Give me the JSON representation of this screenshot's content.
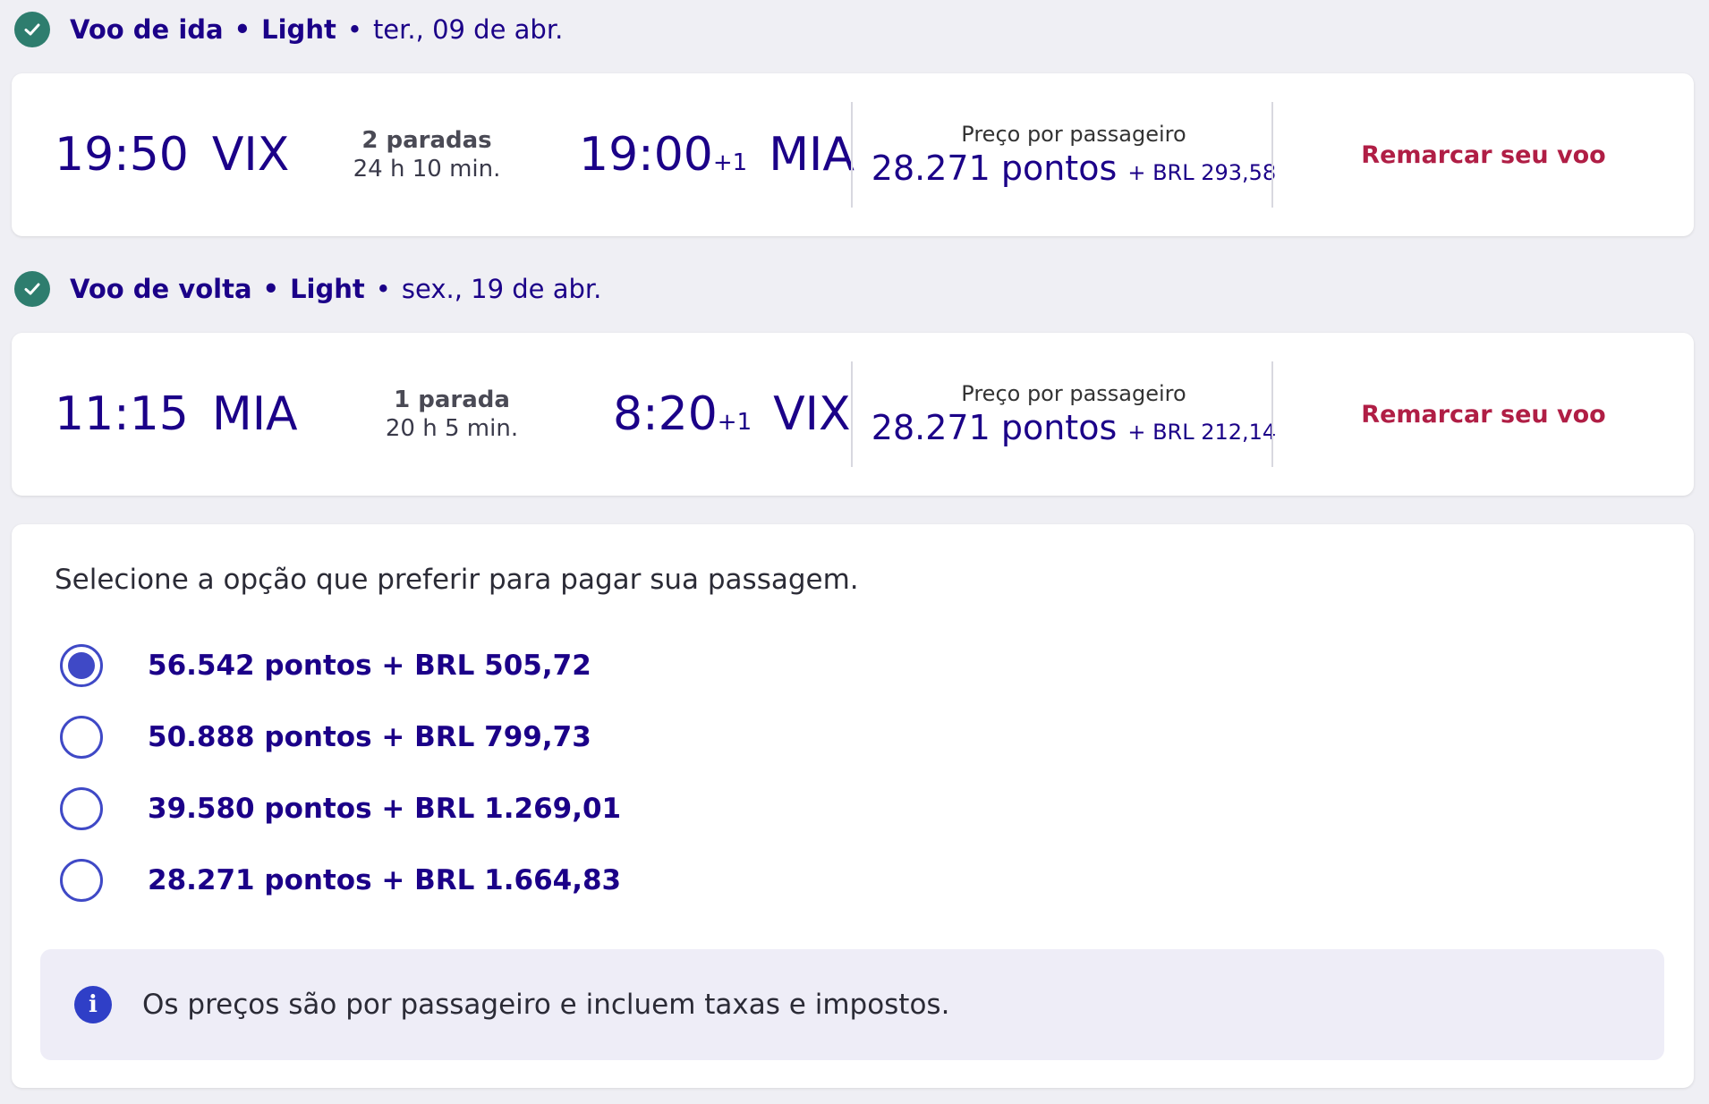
{
  "outbound": {
    "header_title": "Voo de ida",
    "header_fare": "Light",
    "header_date": "ter., 09 de abr.",
    "dep_time": "19:50",
    "dep_iata": "VIX",
    "stops": "2 paradas",
    "duration": "24 h 10 min.",
    "arr_time": "19:00",
    "arr_plus": "+1",
    "arr_iata": "MIA",
    "price_label": "Preço por passageiro",
    "price_points": "28.271 pontos",
    "price_extra": "+ BRL 293,58",
    "action": "Remarcar seu voo"
  },
  "inbound": {
    "header_title": "Voo de volta",
    "header_fare": "Light",
    "header_date": "sex., 19 de abr.",
    "dep_time": "11:15",
    "dep_iata": "MIA",
    "stops": "1 parada",
    "duration": "20 h 5 min.",
    "arr_time": "8:20",
    "arr_plus": "+1",
    "arr_iata": "VIX",
    "price_label": "Preço por passageiro",
    "price_points": "28.271 pontos",
    "price_extra": "+ BRL 212,14",
    "action": "Remarcar seu voo"
  },
  "payment": {
    "title": "Selecione a opção que preferir para pagar sua passagem.",
    "options": [
      {
        "label": "56.542 pontos + BRL 505,72",
        "selected": true
      },
      {
        "label": "50.888 pontos + BRL 799,73",
        "selected": false
      },
      {
        "label": "39.580 pontos + BRL 1.269,01",
        "selected": false
      },
      {
        "label": "28.271 pontos + BRL 1.664,83",
        "selected": false
      }
    ],
    "info_text": "Os preços são por passageiro e incluem taxas e impostos."
  },
  "colors": {
    "brand_navy": "#1b0088",
    "action_red": "#b01e45",
    "check_green": "#2e7d6e",
    "radio_blue": "#3f49c6"
  },
  "icons": {
    "segment_check": "check-circle-icon",
    "info": "info-icon"
  }
}
